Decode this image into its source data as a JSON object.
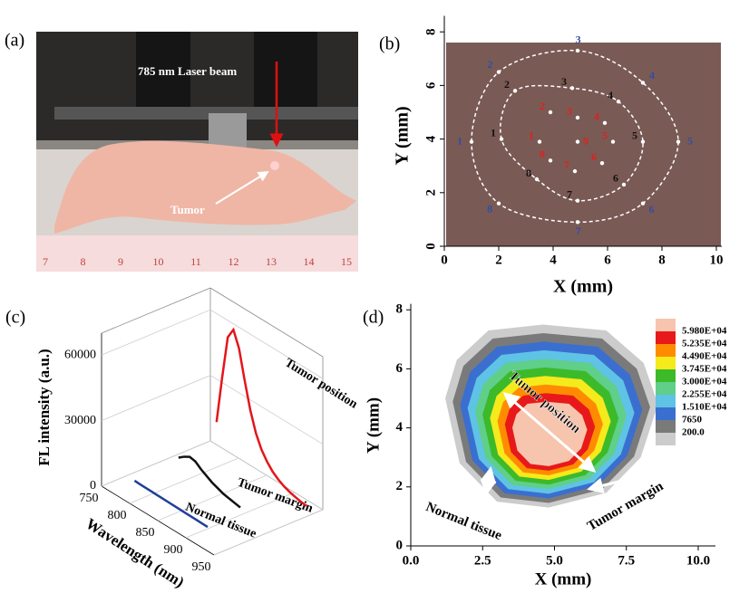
{
  "photo": {
    "label": "(a)",
    "laser_text": "785 nm Laser beam",
    "tumor_text": "Tumor",
    "ruler": [
      "7",
      "8",
      "9",
      "10",
      "11",
      "12",
      "13",
      "14",
      "15"
    ]
  },
  "chart_data": [
    {
      "type": "scatter",
      "panel_label": "(b)",
      "xlabel": "X (mm)",
      "ylabel": "Y (mm)",
      "xlim": [
        0,
        10.2
      ],
      "ylim": [
        0,
        8.6
      ],
      "xticks": [
        0,
        2,
        4,
        6,
        8,
        10
      ],
      "yticks": [
        0,
        2,
        4,
        6,
        8
      ],
      "series": [
        {
          "color": "#2e4fa3",
          "point_labels": [
            "1",
            "2",
            "3",
            "4",
            "5",
            "6",
            "7",
            "8"
          ],
          "x": [
            1.0,
            2.0,
            4.9,
            7.3,
            8.6,
            7.3,
            4.9,
            2.0
          ],
          "values": [
            3.9,
            6.5,
            7.3,
            6.1,
            3.9,
            1.6,
            0.9,
            1.6
          ]
        },
        {
          "color": "#111111",
          "point_labels": [
            "1",
            "2",
            "3",
            "4",
            "5",
            "6",
            "7",
            "8"
          ],
          "x": [
            2.1,
            2.6,
            4.7,
            6.4,
            7.3,
            6.6,
            4.9,
            3.4
          ],
          "values": [
            4.0,
            5.8,
            5.9,
            5.4,
            3.9,
            2.3,
            1.7,
            2.5
          ]
        },
        {
          "color": "#e0201b",
          "point_labels": [
            "1",
            "2",
            "3",
            "4",
            "5",
            "6",
            "7",
            "8",
            "9"
          ],
          "x": [
            3.5,
            3.9,
            4.9,
            5.9,
            6.2,
            5.8,
            4.8,
            3.9,
            4.9
          ],
          "values": [
            3.9,
            5.0,
            4.8,
            4.6,
            3.9,
            3.1,
            2.8,
            3.2,
            3.9
          ]
        }
      ]
    },
    {
      "type": "line3d",
      "panel_label": "(c)",
      "xlabel": "Wavelength (nm)",
      "ylabel": "FL intensity (a.u.)",
      "xlim": [
        750,
        950
      ],
      "ylim": [
        0,
        70000
      ],
      "xticks": [
        750,
        800,
        850,
        900,
        950
      ],
      "yticks": [
        0,
        30000,
        60000
      ],
      "x": [
        770,
        780,
        790,
        800,
        810,
        820,
        830,
        840,
        850,
        860,
        870,
        880,
        890,
        900,
        910,
        920,
        930,
        940,
        950
      ],
      "series": [
        {
          "name": "Normal tissue",
          "color": "#1f3f9a",
          "values": [
            1500,
            1400,
            1350,
            1300,
            1250,
            1200,
            1150,
            1100,
            1050,
            1000,
            950,
            900,
            850,
            800,
            null,
            null,
            null,
            null,
            null
          ]
        },
        {
          "name": "Tumor margin",
          "color": "#111111",
          "values": [
            null,
            null,
            9000,
            11000,
            12500,
            12000,
            10000,
            8500,
            7000,
            6000,
            5000,
            4500,
            4000,
            3500,
            null,
            null,
            null,
            null,
            null
          ]
        },
        {
          "name": "Tumor position",
          "color": "#e3161b",
          "values": [
            null,
            null,
            18000,
            40000,
            60000,
            65000,
            58000,
            45000,
            33000,
            24000,
            18000,
            14000,
            11000,
            9000,
            7500,
            6500,
            5800,
            5200,
            4800
          ]
        }
      ]
    },
    {
      "type": "contour",
      "panel_label": "(d)",
      "xlabel": "X (mm)",
      "ylabel": "Y (mm)",
      "xlim": [
        0,
        10.6
      ],
      "ylim": [
        0,
        8.2
      ],
      "xticks": [
        {
          "value": 0,
          "label": "0.0"
        },
        {
          "value": 2.5,
          "label": "2.5"
        },
        {
          "value": 5,
          "label": "5.0"
        },
        {
          "value": 7.5,
          "label": "7.5"
        },
        {
          "value": 10,
          "label": "10.0"
        }
      ],
      "yticks": [
        0,
        2,
        4,
        6,
        8
      ],
      "levels": [
        {
          "value": 59800,
          "label": "5.980E+04"
        },
        {
          "value": 52350,
          "label": "5.235E+04"
        },
        {
          "value": 44900,
          "label": "4.490E+04"
        },
        {
          "value": 37450,
          "label": "3.745E+04"
        },
        {
          "value": 30000,
          "label": "3.000E+04"
        },
        {
          "value": 22550,
          "label": "2.255E+04"
        },
        {
          "value": 15100,
          "label": "1.510E+04"
        },
        {
          "value": 7650,
          "label": "7650"
        },
        {
          "value": 200,
          "label": "200.0"
        }
      ],
      "colors": [
        "#f7c4ae",
        "#e8191a",
        "#ff8c00",
        "#f5ea1c",
        "#3cba2a",
        "#5fcf8a",
        "#5fc3e6",
        "#3a6fd0",
        "#7a7a7a",
        "#cccccc"
      ],
      "annotations": [
        "Tumor position",
        "Tumor margin",
        "Normal tissue"
      ]
    }
  ]
}
